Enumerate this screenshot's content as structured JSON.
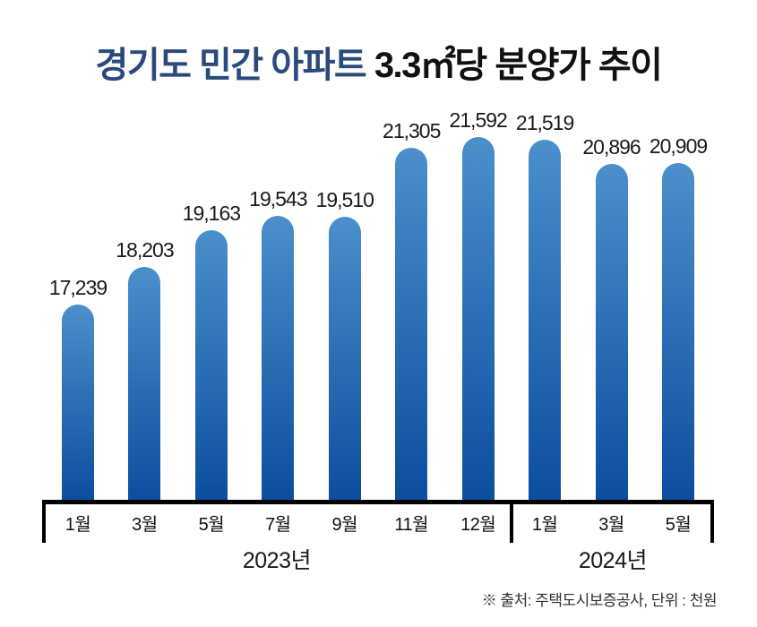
{
  "title": {
    "highlight": "경기도 민간 아파트",
    "rest": "3.3㎡당 분양가 추이"
  },
  "chart_data": {
    "type": "bar",
    "title": "경기도 민간 아파트 3.3㎡당 분양가 추이",
    "unit": "천원",
    "categories": [
      "1월",
      "3월",
      "5월",
      "7월",
      "9월",
      "11월",
      "12월",
      "1월",
      "3월",
      "5월"
    ],
    "values": [
      17239,
      18203,
      19163,
      19543,
      19510,
      21305,
      21592,
      21519,
      20896,
      20909
    ],
    "value_labels": [
      "17,239",
      "18,203",
      "19,163",
      "19,543",
      "19,510",
      "21,305",
      "21,592",
      "21,519",
      "20,896",
      "20,909"
    ],
    "groups": [
      {
        "label": "2023년",
        "count": 7
      },
      {
        "label": "2024년",
        "count": 3
      }
    ],
    "legend": [],
    "grid": false,
    "bar_color_top": "#4b8fcb",
    "bar_color_bottom": "#0c4c9e"
  },
  "footer": {
    "source_note": "※ 출처: 주택도시보증공사, 단위 : 천원"
  },
  "colors": {
    "title_highlight": "#2a4a7b",
    "title_rest": "#111111",
    "axis": "#000000",
    "value_label": "#1a1a1a",
    "month_label": "#111111",
    "year_label": "#1a1a1a",
    "footer_text": "#2e2e2e"
  }
}
